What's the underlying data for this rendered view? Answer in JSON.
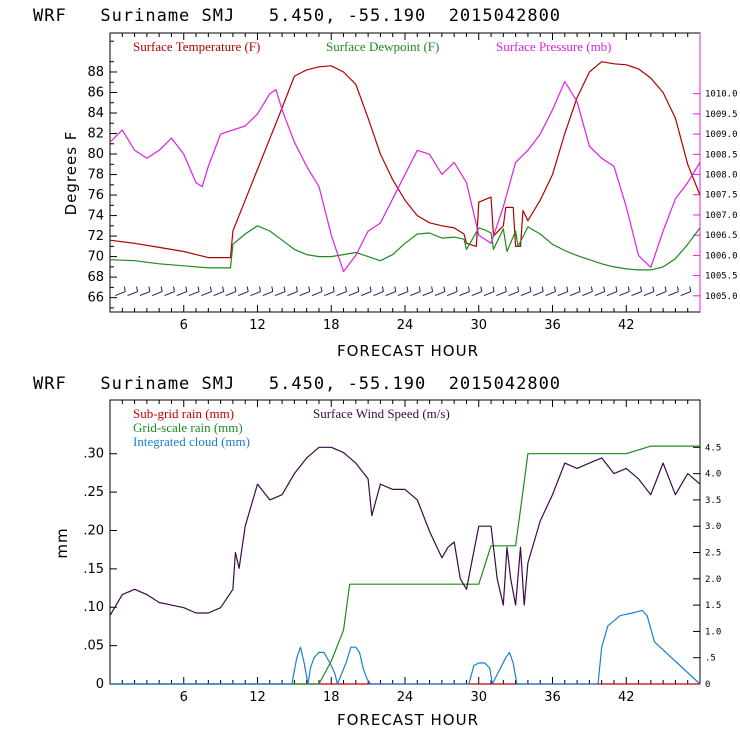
{
  "colors": {
    "temperature": "#b00000",
    "dewpoint": "#1e8a1e",
    "pressure": "#e020e0",
    "subgrid": "#c00000",
    "gridscale": "#1e8a1e",
    "cloud": "#1a7fd0",
    "wind": "#3b0a45",
    "barb": "#1a1a55",
    "axis": "#000000"
  },
  "chart_data": [
    {
      "type": "line",
      "title": "WRF   Suriname SMJ   5.450, -55.190  2015042800",
      "xlabel": "FORECAST HOUR",
      "ylabel": "Degrees F",
      "xlim": [
        0,
        48
      ],
      "ylim": [
        64.6,
        91.8
      ],
      "y2lim": [
        1004.6,
        1011.5
      ],
      "xticks": [
        6,
        12,
        18,
        24,
        30,
        36,
        42
      ],
      "yticks": [
        66,
        68,
        70,
        72,
        74,
        76,
        78,
        80,
        82,
        84,
        86,
        88
      ],
      "y2ticks": [
        1005.0,
        1005.5,
        1006.0,
        1006.5,
        1007.0,
        1007.5,
        1008.0,
        1008.5,
        1009.0,
        1009.5,
        1010.0
      ],
      "y2tick_labels": [
        "1005.0",
        "1005.5",
        "1006.0",
        "1006.5",
        "1007.0",
        "1007.5",
        "1008.0",
        "1008.5",
        "1009.0",
        "1009.5",
        "1010.0"
      ],
      "legend": [
        "Surface Temperature (F)",
        "Surface Dewpoint (F)",
        "Surface Pressure (mb)"
      ],
      "series": [
        {
          "name": "Surface Temperature (F)",
          "axis": "left",
          "x": [
            0,
            2,
            4,
            6,
            8,
            9.8,
            10,
            11,
            12,
            13,
            14,
            15,
            16,
            17,
            18,
            19,
            20,
            21,
            22,
            23,
            24,
            25,
            26,
            27,
            28,
            28.8,
            29,
            29.8,
            30,
            31,
            31.2,
            32,
            32.2,
            32.8,
            33,
            33.4,
            33.6,
            34,
            35,
            36,
            37,
            38,
            39,
            40,
            41,
            42,
            43,
            44,
            45,
            46,
            47,
            48
          ],
          "values": [
            71.6,
            71.3,
            70.9,
            70.5,
            69.9,
            69.9,
            72.5,
            75.5,
            78.5,
            81.5,
            84.5,
            87.6,
            88.2,
            88.5,
            88.6,
            88.0,
            86.8,
            83.5,
            80.0,
            77.5,
            75.5,
            74.0,
            73.3,
            73.0,
            72.8,
            72.2,
            71.3,
            71.0,
            75.3,
            75.8,
            72.0,
            73.0,
            74.8,
            74.8,
            71.0,
            71.0,
            74.5,
            73.5,
            75.5,
            78.0,
            82.0,
            85.5,
            88.0,
            89.0,
            88.8,
            88.7,
            88.3,
            87.4,
            86.0,
            83.5,
            79.0,
            76.0
          ]
        },
        {
          "name": "Surface Dewpoint (F)",
          "axis": "left",
          "x": [
            0,
            2,
            4,
            6,
            8,
            9.8,
            10,
            11,
            12,
            13,
            14,
            15,
            16,
            17,
            18,
            19,
            20,
            21,
            22,
            23,
            24,
            25,
            26,
            27,
            28,
            28.8,
            29,
            30,
            30.5,
            31,
            31.2,
            32,
            32.3,
            33,
            33.2,
            34,
            35,
            36,
            37,
            38,
            39,
            40,
            41,
            42,
            43,
            44,
            45,
            46,
            47,
            48
          ],
          "values": [
            69.7,
            69.6,
            69.3,
            69.1,
            68.9,
            68.9,
            71.2,
            72.2,
            73.0,
            72.5,
            71.6,
            70.7,
            70.2,
            70.0,
            70.0,
            70.2,
            70.4,
            70.0,
            69.6,
            70.2,
            71.3,
            72.2,
            72.3,
            71.8,
            71.9,
            71.7,
            70.7,
            72.8,
            72.6,
            72.3,
            70.7,
            72.7,
            70.5,
            72.5,
            71.0,
            72.9,
            72.2,
            71.2,
            70.6,
            70.1,
            69.7,
            69.3,
            69.0,
            68.8,
            68.7,
            68.7,
            69.0,
            69.8,
            71.2,
            72.8
          ]
        },
        {
          "name": "Surface Pressure (mb)",
          "axis": "right",
          "x": [
            0,
            1,
            2,
            3,
            4,
            5,
            6,
            7,
            7.5,
            8,
            9,
            10,
            11,
            12,
            13,
            13.5,
            14,
            15,
            16,
            17,
            18,
            19,
            20,
            21,
            22,
            23,
            24,
            25,
            26,
            27,
            28,
            29,
            30,
            31,
            32,
            33,
            34,
            35,
            36,
            37,
            38,
            39,
            40,
            41,
            42,
            43,
            44,
            45,
            46,
            47,
            48
          ],
          "values": [
            1008.8,
            1009.1,
            1008.6,
            1008.4,
            1008.6,
            1008.9,
            1008.5,
            1007.8,
            1007.7,
            1008.2,
            1009.0,
            1009.1,
            1009.2,
            1009.5,
            1010.0,
            1010.1,
            1009.6,
            1008.8,
            1008.2,
            1007.7,
            1006.5,
            1005.6,
            1006.0,
            1006.6,
            1006.8,
            1007.4,
            1008.0,
            1008.6,
            1008.5,
            1008.0,
            1008.3,
            1007.8,
            1006.5,
            1006.3,
            1007.2,
            1008.3,
            1008.6,
            1009.0,
            1009.6,
            1010.3,
            1009.8,
            1008.7,
            1008.4,
            1008.2,
            1007.2,
            1006.0,
            1005.7,
            1006.6,
            1007.4,
            1007.8,
            1008.3
          ]
        }
      ],
      "wind_barbs": {
        "x_start": 1,
        "x_end": 47.5,
        "step": 1,
        "level": 66.4
      }
    },
    {
      "type": "line",
      "title": "WRF   Suriname SMJ   5.450, -55.190  2015042800",
      "xlabel": "FORECAST HOUR",
      "ylabel": "mm",
      "xlim": [
        0,
        48
      ],
      "ylim": [
        0,
        0.37
      ],
      "y2lim": [
        0,
        5.4
      ],
      "xticks": [
        6,
        12,
        18,
        24,
        30,
        36,
        42
      ],
      "yticks": [
        0,
        0.05,
        0.1,
        0.15,
        0.2,
        0.25,
        0.3
      ],
      "ytick_labels": [
        "0",
        ".05",
        ".10",
        ".15",
        ".20",
        ".25",
        ".30"
      ],
      "y2ticks": [
        0,
        0.5,
        1.0,
        1.5,
        2.0,
        2.5,
        3.0,
        3.5,
        4.0,
        4.5
      ],
      "y2tick_labels": [
        "0",
        ".5",
        "1.0",
        "1.5",
        "2.0",
        "2.5",
        "3.0",
        "3.5",
        "4.0",
        "4.5"
      ],
      "legend": [
        "Sub-grid rain (mm)",
        "Grid-scale rain (mm)",
        "Integrated cloud (mm)",
        "Surface Wind Speed (m/s)"
      ],
      "series": [
        {
          "name": "Sub-grid rain (mm)",
          "axis": "left",
          "x": [
            0,
            48
          ],
          "values": [
            0,
            0
          ]
        },
        {
          "name": "Grid-scale rain (mm)",
          "axis": "left",
          "x": [
            0,
            17,
            18,
            19,
            19.5,
            20,
            29,
            30,
            31,
            32,
            33,
            33.5,
            34,
            41,
            42,
            43,
            44,
            48
          ],
          "values": [
            0,
            0,
            0.03,
            0.07,
            0.13,
            0.13,
            0.13,
            0.13,
            0.18,
            0.18,
            0.18,
            0.24,
            0.3,
            0.3,
            0.3,
            0.305,
            0.31,
            0.31
          ]
        },
        {
          "name": "Integrated cloud (mm)",
          "axis": "right",
          "x": [
            0,
            14.8,
            15.2,
            15.5,
            15.8,
            16.1,
            16.3,
            16.6,
            17.0,
            17.4,
            17.9,
            18.3,
            18.5,
            19.2,
            19.6,
            20.0,
            20.3,
            20.6,
            20.9,
            21.2,
            29.2,
            29.6,
            30.0,
            30.5,
            30.9,
            31.1,
            32.2,
            32.5,
            32.8,
            33.1,
            39.7,
            40.0,
            40.5,
            41.5,
            42.5,
            43.3,
            43.7,
            44.3,
            48
          ],
          "values": [
            0,
            0,
            0.5,
            0.7,
            0.4,
            0.0,
            0.3,
            0.5,
            0.6,
            0.6,
            0.4,
            0.2,
            0.0,
            0.4,
            0.7,
            0.7,
            0.6,
            0.3,
            0.1,
            0,
            0,
            0.35,
            0.4,
            0.4,
            0.3,
            0,
            0.5,
            0.6,
            0.4,
            0,
            0,
            0.7,
            1.1,
            1.3,
            1.35,
            1.4,
            1.3,
            0.8,
            0
          ]
        },
        {
          "name": "Surface Wind Speed (m/s)",
          "axis": "right",
          "x": [
            0,
            1,
            2,
            3,
            4,
            5,
            6,
            7,
            8,
            9,
            10,
            10.2,
            10.5,
            11,
            12,
            13,
            14,
            15,
            16,
            17,
            18,
            19,
            20,
            21,
            21.3,
            22,
            23,
            24,
            25,
            26,
            27,
            27.5,
            28,
            28.5,
            29,
            29.5,
            30,
            31,
            31.5,
            32,
            32.3,
            32.6,
            33,
            33.4,
            33.7,
            34,
            35,
            36,
            37,
            38,
            39,
            40,
            41,
            42,
            43,
            44,
            45,
            46,
            47,
            48
          ],
          "values": [
            1.3,
            1.7,
            1.8,
            1.7,
            1.55,
            1.5,
            1.45,
            1.35,
            1.35,
            1.45,
            1.8,
            2.5,
            2.2,
            3.0,
            3.8,
            3.5,
            3.6,
            4.0,
            4.3,
            4.5,
            4.5,
            4.4,
            4.2,
            3.9,
            3.2,
            3.8,
            3.7,
            3.7,
            3.5,
            2.9,
            2.4,
            2.6,
            2.7,
            2.0,
            1.8,
            2.4,
            3.0,
            3.0,
            2.0,
            1.5,
            2.6,
            2.0,
            1.5,
            2.6,
            1.5,
            2.3,
            3.1,
            3.6,
            4.2,
            4.1,
            4.2,
            4.3,
            4.0,
            4.1,
            3.9,
            3.6,
            4.2,
            3.6,
            4.0,
            3.8
          ]
        }
      ]
    }
  ]
}
